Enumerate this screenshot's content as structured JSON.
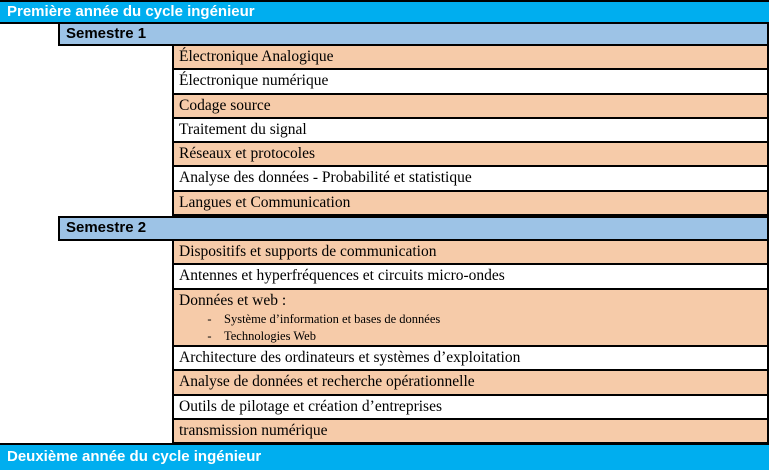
{
  "colors": {
    "year_bar_bg": "#00AEEF",
    "semester_bar_bg": "#9DC3E6",
    "shaded_row_bg": "#F6CBA9",
    "plain_row_bg": "#FFFFFF",
    "border": "#000000",
    "year_bar_text": "#FFFFFF"
  },
  "bullets": {
    "dash": "-"
  },
  "year1": {
    "title": "Première année du cycle ingénieur",
    "semesters": [
      {
        "label": "Semestre 1",
        "courses": [
          {
            "name": "Électronique Analogique",
            "shaded": true
          },
          {
            "name": "Électronique numérique",
            "shaded": false
          },
          {
            "name": "Codage source",
            "shaded": true
          },
          {
            "name": "Traitement du signal",
            "shaded": false
          },
          {
            "name": "Réseaux et protocoles",
            "shaded": true
          },
          {
            "name": "Analyse des données - Probabilité et statistique",
            "shaded": false
          },
          {
            "name": "Langues et Communication",
            "shaded": true
          }
        ]
      },
      {
        "label": "Semestre 2",
        "courses": [
          {
            "name": "Dispositifs et supports de communication",
            "shaded": true
          },
          {
            "name": "Antennes et hyperfréquences et circuits micro-ondes",
            "shaded": false
          },
          {
            "name": "Données et web :",
            "shaded": true,
            "subitems": [
              "Système d’information et bases de données",
              "Technologies Web"
            ]
          },
          {
            "name": "Architecture des ordinateurs et systèmes d’exploitation",
            "shaded": false
          },
          {
            "name": "Analyse de données et recherche opérationnelle",
            "shaded": true
          },
          {
            "name": "Outils de pilotage et création d’entreprises",
            "shaded": false
          },
          {
            "name": "transmission numérique",
            "shaded": true
          }
        ]
      }
    ]
  },
  "year2": {
    "title": "Deuxième année du cycle ingénieur"
  }
}
